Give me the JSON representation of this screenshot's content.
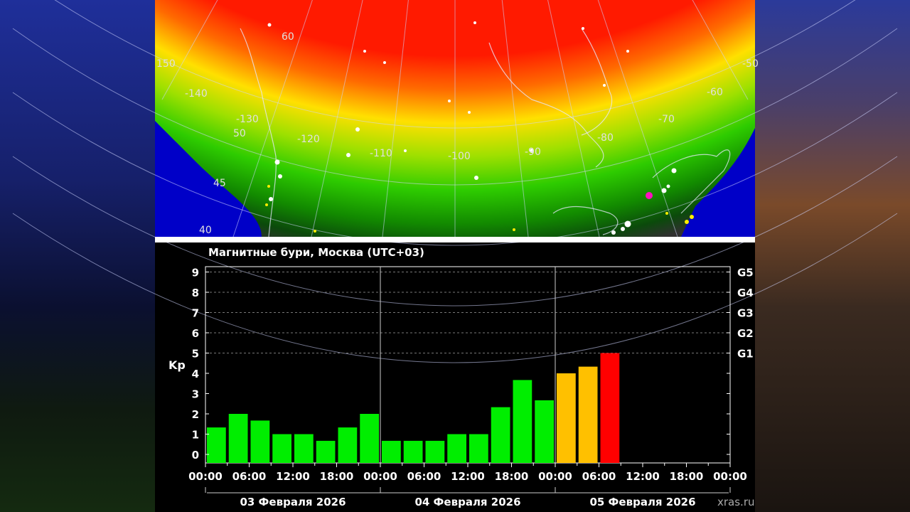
{
  "map": {
    "longitude_labels": [
      "150",
      "-140",
      "-130",
      "-120",
      "-110",
      "-100",
      "-90",
      "-80",
      "-70",
      "-60",
      "-50"
    ],
    "latitude_labels": [
      "60",
      "50",
      "45",
      "40"
    ]
  },
  "chart_data": {
    "type": "bar",
    "title": "Магнитные бури, Москва (UTC+03)",
    "ylabel": "Kp",
    "ylim": [
      0,
      9
    ],
    "yticks": [
      "0",
      "1",
      "2",
      "3",
      "4",
      "5",
      "6",
      "7",
      "8",
      "9"
    ],
    "storm_levels": [
      {
        "label": "G1",
        "kp": 5
      },
      {
        "label": "G2",
        "kp": 6
      },
      {
        "label": "G3",
        "kp": 7
      },
      {
        "label": "G4",
        "kp": 8
      },
      {
        "label": "G5",
        "kp": 9
      }
    ],
    "x_tick_labels": [
      "00:00",
      "06:00",
      "12:00",
      "18:00",
      "00:00",
      "06:00",
      "12:00",
      "18:00",
      "00:00",
      "06:00",
      "12:00",
      "18:00",
      "00:00"
    ],
    "days": [
      "03 Февраля 2026",
      "04 Февраля 2026",
      "05 Февраля 2026"
    ],
    "interval_hours": 3,
    "values": [
      1.33,
      2.0,
      1.67,
      1.0,
      1.0,
      0.67,
      1.33,
      2.0,
      0.67,
      0.67,
      0.67,
      1.0,
      1.0,
      2.33,
      3.67,
      2.67,
      4.0,
      4.33,
      5.0
    ],
    "level_colors": {
      "quiet": "#00ee00",
      "active": "#ffc000",
      "storm": "#ff0000"
    },
    "grid": true
  },
  "credit": "xras.ru"
}
